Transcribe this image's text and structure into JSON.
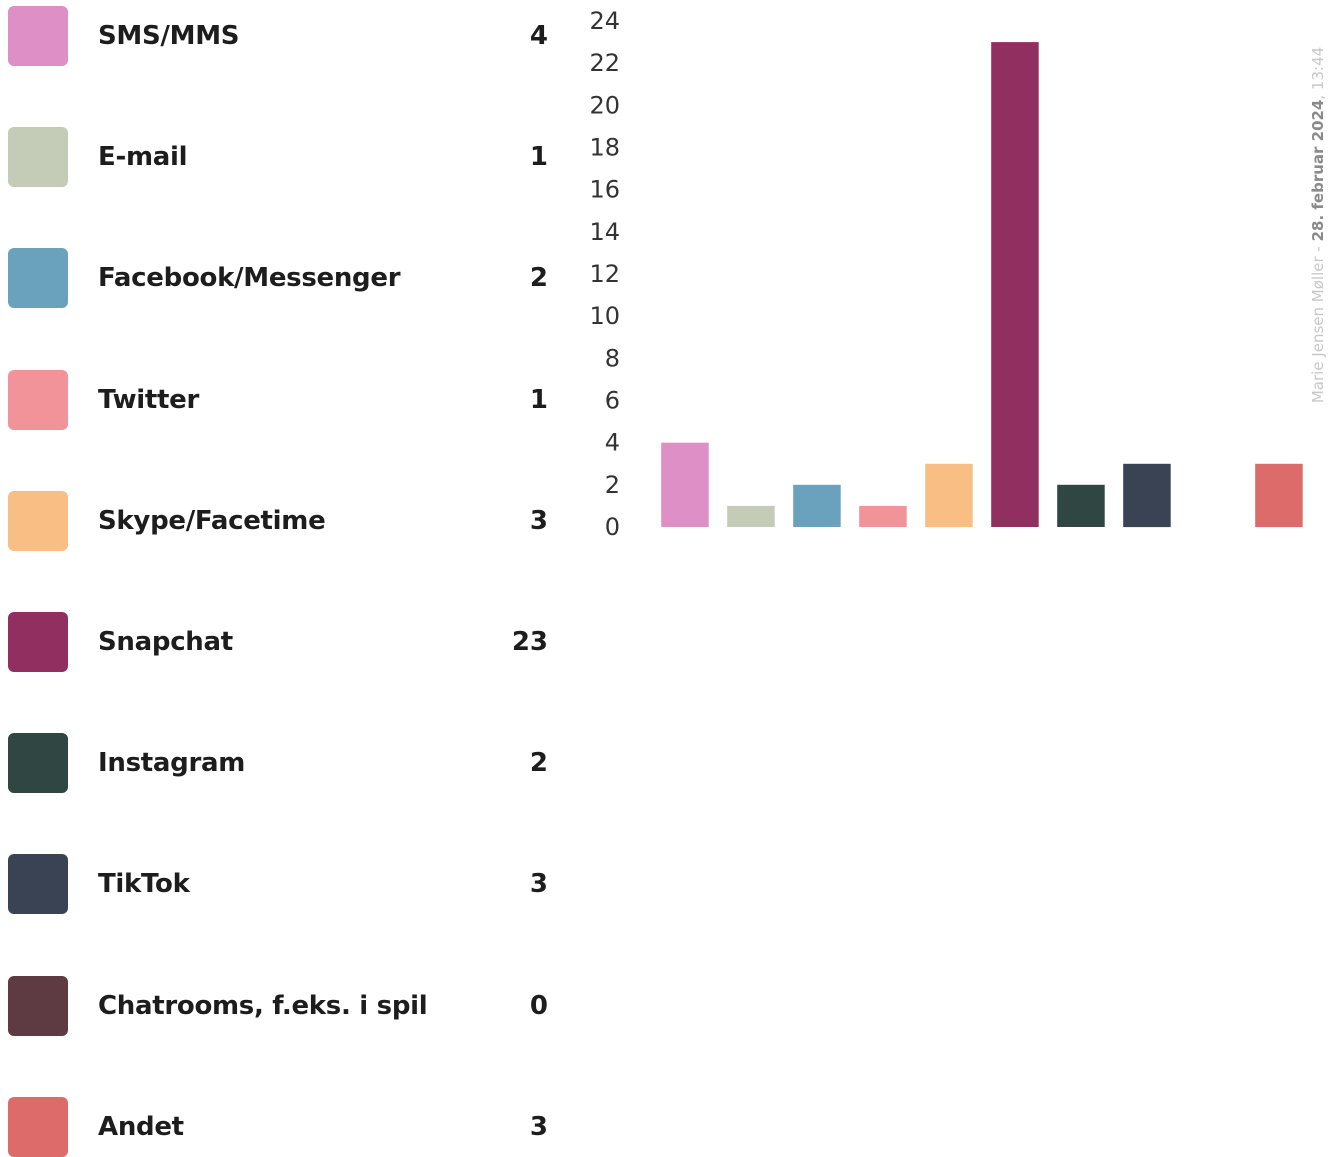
{
  "chart_data": {
    "type": "bar",
    "categories": [
      "SMS/MMS",
      "E-mail",
      "Facebook/Messenger",
      "Twitter",
      "Skype/Facetime",
      "Snapchat",
      "Instagram",
      "TikTok",
      "Chatrooms, f.eks. i spil",
      "Andet"
    ],
    "values": [
      4,
      1,
      2,
      1,
      3,
      23,
      2,
      3,
      0,
      3
    ],
    "colors": [
      "#dd8fc6",
      "#c4cbb6",
      "#6aa1bc",
      "#f2939a",
      "#f9be83",
      "#922f61",
      "#2f4642",
      "#3a4354",
      "#5e3b43",
      "#dd6b69"
    ],
    "title": "",
    "xlabel": "",
    "ylabel": "",
    "ylim": [
      0,
      24
    ],
    "yticks": [
      0,
      2,
      4,
      6,
      8,
      10,
      12,
      14,
      16,
      18,
      20,
      22,
      24
    ],
    "grid": false,
    "legend": "left"
  },
  "watermark": {
    "author": "Marie Jensen Møller - ",
    "date": "28. februar 2024",
    "time": ", 13:44"
  }
}
